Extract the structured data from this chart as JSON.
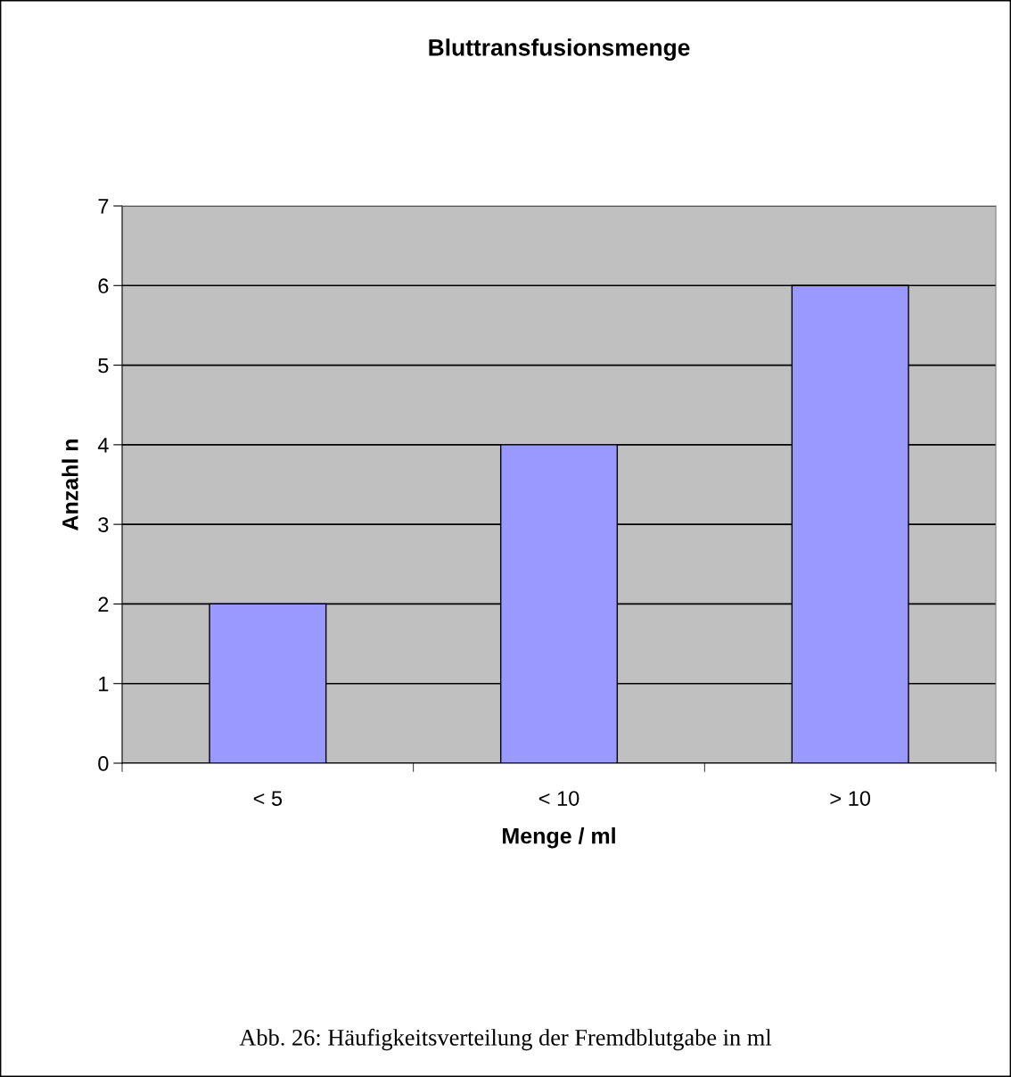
{
  "chart_data": {
    "type": "bar",
    "title": "Bluttransfusionsmenge",
    "xlabel": "Menge / ml",
    "ylabel": "Anzahl n",
    "categories": [
      "< 5",
      "< 10",
      "> 10"
    ],
    "values": [
      2,
      4,
      6
    ],
    "color": "#9999ff",
    "ylim": [
      0,
      7
    ],
    "yticks": [
      0,
      1,
      2,
      3,
      4,
      5,
      6,
      7
    ],
    "grid": "y",
    "legend": false,
    "annotations": [
      "Abb. 26: Häufigkeitsverteilung der Fremdblutgabe in ml"
    ]
  }
}
